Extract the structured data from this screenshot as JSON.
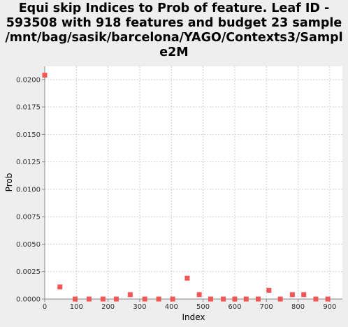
{
  "chart_data": {
    "type": "scatter",
    "title_lines": [
      "Equi skip Indices to Prob of feature. Leaf ID -",
      "593508 with 918 features and budget 23 sample",
      "/mnt/bag/sasik/barcelona/YAGO/Contexts3/Sampl",
      "e2M"
    ],
    "xlabel": "Index",
    "ylabel": "Prob",
    "xlim": [
      0,
      940
    ],
    "ylim": [
      0,
      0.0212
    ],
    "x_ticks": [
      {
        "value": 0,
        "label": "0"
      },
      {
        "value": 100,
        "label": "100"
      },
      {
        "value": 200,
        "label": "200"
      },
      {
        "value": 300,
        "label": "300"
      },
      {
        "value": 400,
        "label": "400"
      },
      {
        "value": 500,
        "label": "500"
      },
      {
        "value": 600,
        "label": "600"
      },
      {
        "value": 700,
        "label": "700"
      },
      {
        "value": 800,
        "label": "800"
      },
      {
        "value": 900,
        "label": "900"
      }
    ],
    "y_ticks": [
      {
        "value": 0,
        "label": "0.0000"
      },
      {
        "value": 0.0025,
        "label": "0.0025"
      },
      {
        "value": 0.005,
        "label": "0.0050"
      },
      {
        "value": 0.0075,
        "label": "0.0075"
      },
      {
        "value": 0.01,
        "label": "0.0100"
      },
      {
        "value": 0.0125,
        "label": "0.0125"
      },
      {
        "value": 0.015,
        "label": "0.0150"
      },
      {
        "value": 0.0175,
        "label": "0.0175"
      },
      {
        "value": 0.02,
        "label": "0.0200"
      }
    ],
    "grid": true,
    "legend": "none",
    "series": [
      {
        "color": "#f25757",
        "points": [
          {
            "x": 0,
            "y": 0.0204
          },
          {
            "x": 48,
            "y": 0.0011
          },
          {
            "x": 96,
            "y": 0.0
          },
          {
            "x": 140,
            "y": 0.0
          },
          {
            "x": 184,
            "y": 0.0
          },
          {
            "x": 226,
            "y": 0.0
          },
          {
            "x": 270,
            "y": 0.0004
          },
          {
            "x": 316,
            "y": 0.0
          },
          {
            "x": 360,
            "y": 0.0
          },
          {
            "x": 404,
            "y": 0.0
          },
          {
            "x": 450,
            "y": 0.0019
          },
          {
            "x": 488,
            "y": 0.0004
          },
          {
            "x": 524,
            "y": 0.0
          },
          {
            "x": 564,
            "y": 0.0
          },
          {
            "x": 600,
            "y": 0.0
          },
          {
            "x": 636,
            "y": 0.0
          },
          {
            "x": 674,
            "y": 0.0
          },
          {
            "x": 708,
            "y": 0.0008
          },
          {
            "x": 744,
            "y": 0.0
          },
          {
            "x": 782,
            "y": 0.0004
          },
          {
            "x": 818,
            "y": 0.0004
          },
          {
            "x": 856,
            "y": 0.0
          },
          {
            "x": 894,
            "y": 0.0
          }
        ]
      }
    ]
  }
}
